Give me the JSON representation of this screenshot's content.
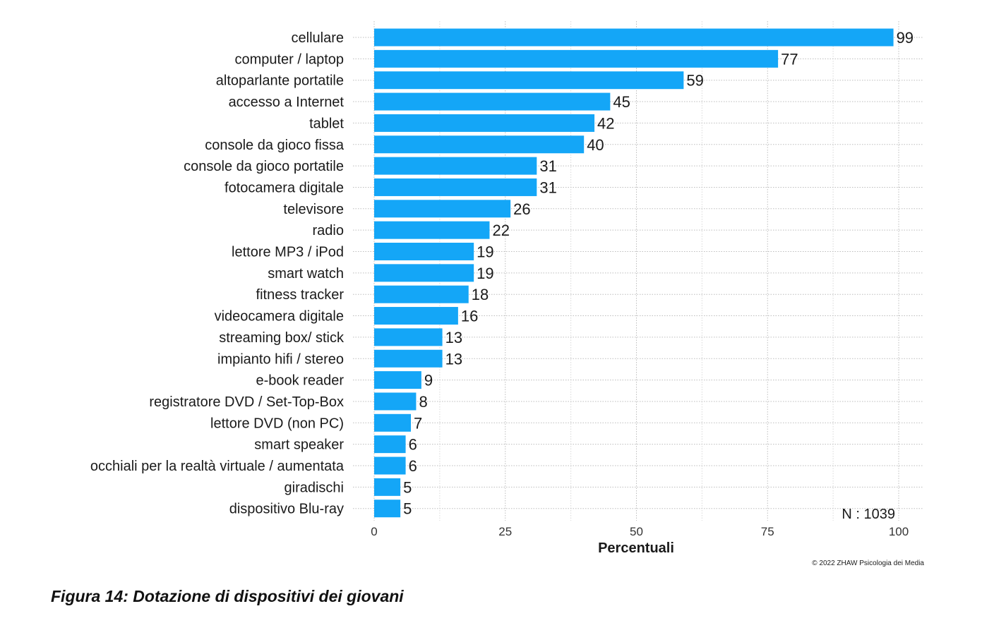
{
  "figure_caption": "Figura 14: Dotazione di dispositivi dei giovani",
  "sample_label": "N : 1039",
  "credit": "© 2022 ZHAW Psicologia dei Media",
  "bar_color": "#14a6f7",
  "chart_data": {
    "type": "bar",
    "orientation": "horizontal",
    "title": "",
    "xlabel": "Percentuali",
    "ylabel": "",
    "xlim": [
      0,
      100
    ],
    "x_ticks": [
      0,
      25,
      50,
      75,
      100
    ],
    "grid": true,
    "categories": [
      "cellulare",
      "computer / laptop",
      "altoparlante portatile",
      "accesso a Internet",
      "tablet",
      "console da gioco fissa",
      "console da gioco portatile",
      "fotocamera digitale",
      "televisore",
      "radio",
      "lettore MP3 / iPod",
      "smart watch",
      "fitness tracker",
      "videocamera digitale",
      "streaming box/ stick",
      "impianto hifi / stereo",
      "e-book reader",
      "registratore DVD / Set-Top-Box",
      "lettore DVD (non PC)",
      "smart speaker",
      "occhiali per la realtà virtuale / aumentata",
      "giradischi",
      "dispositivo Blu-ray"
    ],
    "values": [
      99,
      77,
      59,
      45,
      42,
      40,
      31,
      31,
      26,
      22,
      19,
      19,
      18,
      16,
      13,
      13,
      9,
      8,
      7,
      6,
      6,
      5,
      5
    ],
    "value_labels": [
      "99",
      "77",
      "59",
      "45",
      "42",
      "40",
      "31",
      "31",
      "26",
      "22",
      "19",
      "19",
      "18",
      "16",
      "13",
      "13",
      "9",
      "8",
      "7",
      "6",
      "6",
      "5",
      "5"
    ]
  }
}
